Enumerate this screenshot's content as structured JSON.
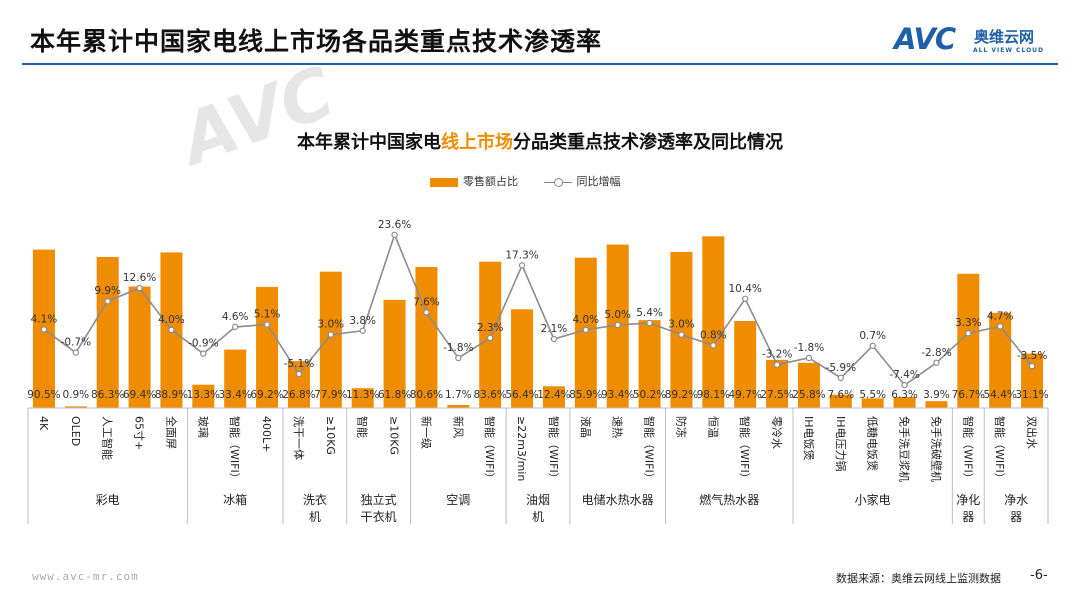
{
  "header": {
    "title": "本年累计中国家电线上市场各品类重点技术渗透率"
  },
  "logo": {
    "mark": "AVC",
    "cn": "奥维云网",
    "en": "ALL VIEW CLOUD"
  },
  "watermark": "AVC",
  "colors": {
    "bar": "#ef8c00",
    "line": "#8c8c8c",
    "accent": "#1f5fa8"
  },
  "chart_data": {
    "type": "bar+line",
    "title_parts": [
      "本年累计中国家电",
      "线上市场",
      "分品类重点技术渗透率及同比情况"
    ],
    "legend": [
      "零售额占比",
      "同比增幅"
    ],
    "groups": [
      {
        "name": "彩电",
        "items": [
          {
            "label": "4K",
            "share": "90.5%",
            "share_v": 90.5,
            "yoy": "4.1%",
            "yoy_v": 4.1
          },
          {
            "label": "OLED",
            "share": "0.9%",
            "share_v": 0.9,
            "yoy": "-0.7%",
            "yoy_v": -0.7
          },
          {
            "label": "人工智能",
            "share": "86.3%",
            "share_v": 86.3,
            "yoy": "9.9%",
            "yoy_v": 9.9
          },
          {
            "label": "65寸+",
            "share": "69.4%",
            "share_v": 69.4,
            "yoy": "12.6%",
            "yoy_v": 12.6
          },
          {
            "label": "全面屏",
            "share": "88.9%",
            "share_v": 88.9,
            "yoy": "4.0%",
            "yoy_v": 4.0
          }
        ]
      },
      {
        "name": "冰箱",
        "items": [
          {
            "label": "玻璃",
            "share": "13.3%",
            "share_v": 13.3,
            "yoy": "-0.9%",
            "yoy_v": -0.9
          },
          {
            "label": "智能（WIFI）",
            "share": "33.4%",
            "share_v": 33.4,
            "yoy": "4.6%",
            "yoy_v": 4.6
          },
          {
            "label": "400L+",
            "share": "69.2%",
            "share_v": 69.2,
            "yoy": "5.1%",
            "yoy_v": 5.1
          }
        ]
      },
      {
        "name": "洗衣机",
        "items": [
          {
            "label": "洗干一体",
            "share": "26.8%",
            "share_v": 26.8,
            "yoy": "-5.1%",
            "yoy_v": -5.1
          },
          {
            "label": "≥10KG",
            "share": "77.9%",
            "share_v": 77.9,
            "yoy": "3.0%",
            "yoy_v": 3.0
          }
        ]
      },
      {
        "name": "独立式干衣机",
        "items": [
          {
            "label": "智能",
            "share": "11.3%",
            "share_v": 11.3,
            "yoy": "3.8%",
            "yoy_v": 3.8
          },
          {
            "label": "≥10KG",
            "share": "61.8%",
            "share_v": 61.8,
            "yoy": "23.6%",
            "yoy_v": 23.6
          }
        ]
      },
      {
        "name": "空调",
        "items": [
          {
            "label": "新一级",
            "share": "80.6%",
            "share_v": 80.6,
            "yoy": "7.6%",
            "yoy_v": 7.6
          },
          {
            "label": "新风",
            "share": "1.7%",
            "share_v": 1.7,
            "yoy": "-1.8%",
            "yoy_v": -1.8
          },
          {
            "label": "智能（WIFI）",
            "share": "83.6%",
            "share_v": 83.6,
            "yoy": "2.3%",
            "yoy_v": 2.3
          }
        ]
      },
      {
        "name": "油烟机",
        "items": [
          {
            "label": "≥22m3/min",
            "share": "56.4%",
            "share_v": 56.4,
            "yoy": "17.3%",
            "yoy_v": 17.3
          },
          {
            "label": "智能（WIFI）",
            "share": "12.4%",
            "share_v": 12.4,
            "yoy": "2.1%",
            "yoy_v": 2.1
          }
        ]
      },
      {
        "name": "电储水热水器",
        "items": [
          {
            "label": "液晶",
            "share": "85.9%",
            "share_v": 85.9,
            "yoy": "4.0%",
            "yoy_v": 4.0
          },
          {
            "label": "速热",
            "share": "93.4%",
            "share_v": 93.4,
            "yoy": "5.0%",
            "yoy_v": 5.0
          },
          {
            "label": "智能（WIFI）",
            "share": "50.2%",
            "share_v": 50.2,
            "yoy": "5.4%",
            "yoy_v": 5.4
          }
        ]
      },
      {
        "name": "燃气热水器",
        "items": [
          {
            "label": "防冻",
            "share": "89.2%",
            "share_v": 89.2,
            "yoy": "3.0%",
            "yoy_v": 3.0
          },
          {
            "label": "恒温",
            "share": "98.1%",
            "share_v": 98.1,
            "yoy": "0.8%",
            "yoy_v": 0.8
          },
          {
            "label": "智能（WIFI）",
            "share": "49.7%",
            "share_v": 49.7,
            "yoy": "10.4%",
            "yoy_v": 10.4
          },
          {
            "label": "零冷水",
            "share": "27.5%",
            "share_v": 27.5,
            "yoy": "-3.2%",
            "yoy_v": -3.2
          }
        ]
      },
      {
        "name": "小家电",
        "items": [
          {
            "label": "IH电饭煲",
            "share": "25.8%",
            "share_v": 25.8,
            "yoy": "-1.8%",
            "yoy_v": -1.8
          },
          {
            "label": "IH电压力锅",
            "share": "7.6%",
            "share_v": 7.6,
            "yoy": "-5.9%",
            "yoy_v": -5.9
          },
          {
            "label": "低糖电饭煲",
            "share": "5.5%",
            "share_v": 5.5,
            "yoy": "0.7%",
            "yoy_v": 0.7
          },
          {
            "label": "免手洗豆浆机",
            "share": "6.3%",
            "share_v": 6.3,
            "yoy": "-7.4%",
            "yoy_v": -7.4
          },
          {
            "label": "免手洗破壁机",
            "share": "3.9%",
            "share_v": 3.9,
            "yoy": "-2.8%",
            "yoy_v": -2.8
          }
        ]
      },
      {
        "name": "净化器",
        "items": [
          {
            "label": "智能（WIFI）",
            "share": "76.7%",
            "share_v": 76.7,
            "yoy": "3.3%",
            "yoy_v": 3.3
          }
        ]
      },
      {
        "name": "净水器",
        "items": [
          {
            "label": "智能（WIFI）",
            "share": "54.4%",
            "share_v": 54.4,
            "yoy": "4.7%",
            "yoy_v": 4.7
          },
          {
            "label": "双出水",
            "share": "31.1%",
            "share_v": 31.1,
            "yoy": "-3.5%",
            "yoy_v": -3.5
          }
        ]
      }
    ],
    "bar_ylim": [
      0,
      100
    ],
    "line_ylim": [
      -8,
      25
    ]
  },
  "footer": {
    "url": "www.avc-mr.com",
    "source": "数据来源：奥维云网线上监测数据",
    "page": "-6-"
  }
}
